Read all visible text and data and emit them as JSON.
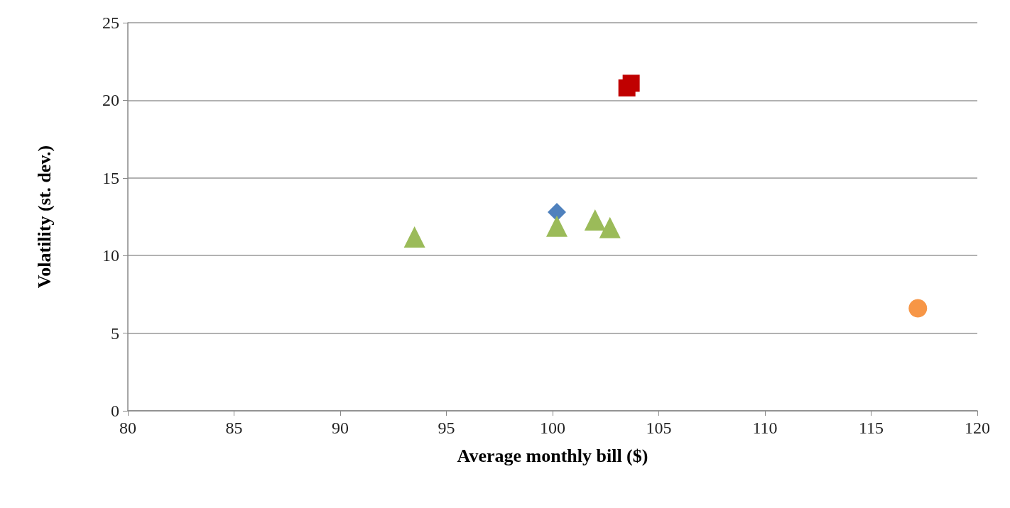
{
  "chart_data": {
    "type": "scatter",
    "xlabel": "Average monthly bill ($)",
    "ylabel": "Volatility (st. dev.)",
    "xlim": [
      80,
      120
    ],
    "xticks": [
      80,
      85,
      90,
      95,
      100,
      105,
      110,
      115,
      120
    ],
    "ylim": [
      0,
      25
    ],
    "yticks": [
      0,
      5,
      10,
      15,
      20,
      25
    ],
    "grid": "y",
    "series": [
      {
        "color": "#c00000",
        "marker": "square",
        "x": [
          103.5,
          103.7
        ],
        "values": [
          20.8,
          21.1
        ]
      },
      {
        "color": "#4f81bd",
        "marker": "diamond",
        "x": [
          100.2
        ],
        "values": [
          12.8
        ]
      },
      {
        "color": "#9bbb59",
        "marker": "triangle",
        "x": [
          93.5,
          100.2,
          102.0,
          102.7
        ],
        "values": [
          11.2,
          11.9,
          12.3,
          11.8
        ]
      },
      {
        "color": "#f79646",
        "marker": "circle",
        "x": [
          117.2
        ],
        "values": [
          6.6
        ]
      }
    ]
  }
}
